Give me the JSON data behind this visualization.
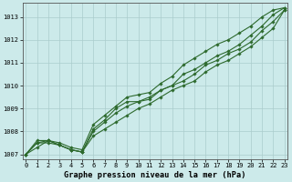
{
  "background_color": "#cceaea",
  "plot_bg_color": "#cceaea",
  "grid_color": "#aacccc",
  "line_color": "#2d6a2d",
  "title": "Graphe pression niveau de la mer (hPa)",
  "xlim": [
    -0.3,
    23.3
  ],
  "ylim": [
    1006.8,
    1013.6
  ],
  "yticks": [
    1007,
    1008,
    1009,
    1010,
    1011,
    1012,
    1013
  ],
  "xticks": [
    0,
    1,
    2,
    3,
    4,
    5,
    6,
    7,
    8,
    9,
    10,
    11,
    12,
    13,
    14,
    15,
    16,
    17,
    18,
    19,
    20,
    21,
    22,
    23
  ],
  "series": [
    [
      1007.0,
      1007.3,
      1007.6,
      1007.4,
      1007.2,
      1007.1,
      1007.8,
      1008.1,
      1008.4,
      1008.7,
      1009.0,
      1009.2,
      1009.5,
      1009.8,
      1010.0,
      1010.2,
      1010.6,
      1010.9,
      1011.1,
      1011.4,
      1011.7,
      1012.1,
      1012.5,
      1013.3
    ],
    [
      1007.0,
      1007.5,
      1007.6,
      1007.4,
      1007.2,
      1007.1,
      1008.0,
      1008.4,
      1008.8,
      1009.1,
      1009.3,
      1009.5,
      1009.8,
      1010.0,
      1010.2,
      1010.5,
      1010.9,
      1011.1,
      1011.4,
      1011.6,
      1011.9,
      1012.4,
      1012.8,
      1013.3
    ],
    [
      1007.0,
      1007.5,
      1007.5,
      1007.4,
      1007.2,
      1007.1,
      1008.1,
      1008.5,
      1009.0,
      1009.3,
      1009.3,
      1009.4,
      1009.8,
      1010.0,
      1010.5,
      1010.7,
      1011.0,
      1011.3,
      1011.5,
      1011.8,
      1012.2,
      1012.6,
      1013.1,
      1013.4
    ],
    [
      1007.0,
      1007.6,
      1007.6,
      1007.5,
      1007.3,
      1007.2,
      1008.3,
      1008.7,
      1009.1,
      1009.5,
      1009.6,
      1009.7,
      1010.1,
      1010.4,
      1010.9,
      1011.2,
      1011.5,
      1011.8,
      1012.0,
      1012.3,
      1012.6,
      1013.0,
      1013.3,
      1013.4
    ]
  ],
  "line_width": 0.8,
  "marker": "D",
  "marker_size": 1.8,
  "tick_fontsize": 5.0,
  "title_fontsize": 6.2,
  "spine_color": "#555555"
}
